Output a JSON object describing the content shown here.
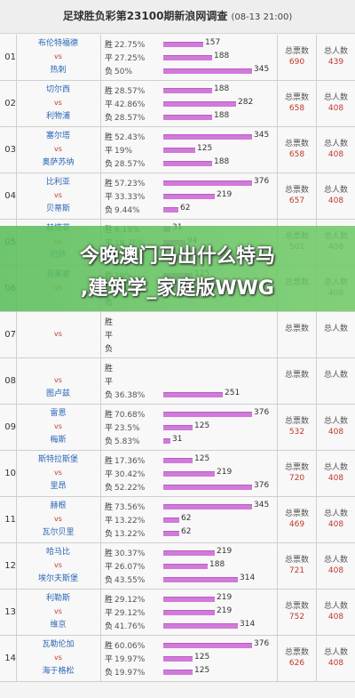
{
  "header": {
    "title": "足球胜负彩第23100期新浪网调查",
    "date": "(08-13 21:00)"
  },
  "labels": {
    "win": "胜",
    "draw": "平",
    "lose": "负",
    "vs": "vs",
    "total_votes": "总票数",
    "total_people": "总人数"
  },
  "overlay": {
    "line1": "今晚澳门马出什么特马",
    "line2": ",建筑学_家庭版WWG"
  },
  "matches": [
    {
      "num": "01",
      "home": "布伦特福德",
      "away": "热刺",
      "win": {
        "pct": "22.75%",
        "count": "157",
        "frac": 0.454
      },
      "draw": {
        "pct": "27.25%",
        "count": "188",
        "frac": 0.545
      },
      "lose": {
        "pct": "50%",
        "count": "345",
        "frac": 1.0
      },
      "votes": "690",
      "people": "439"
    },
    {
      "num": "02",
      "home": "切尔西",
      "away": "利物浦",
      "win": {
        "pct": "28.57%",
        "count": "188",
        "frac": 0.545
      },
      "draw": {
        "pct": "42.86%",
        "count": "282",
        "frac": 0.817
      },
      "lose": {
        "pct": "28.57%",
        "count": "188",
        "frac": 0.545
      },
      "votes": "658",
      "people": "408"
    },
    {
      "num": "03",
      "home": "塞尔塔",
      "away": "奥萨苏纳",
      "win": {
        "pct": "52.43%",
        "count": "345",
        "frac": 1.0
      },
      "draw": {
        "pct": "19%",
        "count": "125",
        "frac": 0.362
      },
      "lose": {
        "pct": "28.57%",
        "count": "188",
        "frac": 0.545
      },
      "votes": "658",
      "people": "408"
    },
    {
      "num": "04",
      "home": "比利亚",
      "away": "贝蒂斯",
      "win": {
        "pct": "57.23%",
        "count": "376",
        "frac": 1.0
      },
      "draw": {
        "pct": "33.33%",
        "count": "219",
        "frac": 0.582
      },
      "lose": {
        "pct": "9.44%",
        "count": "62",
        "frac": 0.165
      },
      "votes": "657",
      "people": "408"
    },
    {
      "num": "05",
      "home": "赫塔菲",
      "away": "巴萨",
      "win": {
        "pct": "6.19%",
        "count": "31",
        "frac": 0.082
      },
      "draw": {
        "pct": "18.76%",
        "count": "94",
        "frac": 0.25
      },
      "lose": {
        "pct": "75.05%",
        "count": "376",
        "frac": 1.0
      },
      "votes": "501",
      "people": "408"
    },
    {
      "num": "06",
      "home": "克莱蒙",
      "away": "",
      "win": {
        "pct": "19%",
        "count": "125",
        "frac": 0.332
      },
      "draw": {
        "pct": "23.86%",
        "count": "157",
        "frac": 0.418
      },
      "lose": {
        "pct": "",
        "count": "",
        "frac": 0
      },
      "votes": "",
      "people": "408"
    },
    {
      "num": "07",
      "home": "",
      "away": "",
      "win": {
        "pct": "",
        "count": "",
        "frac": 0
      },
      "draw": {
        "pct": "",
        "count": "",
        "frac": 0
      },
      "lose": {
        "pct": "",
        "count": "",
        "frac": 0
      },
      "votes": "",
      "people": ""
    },
    {
      "num": "08",
      "home": "",
      "away": "图卢兹",
      "win": {
        "pct": "",
        "count": "",
        "frac": 0
      },
      "draw": {
        "pct": "",
        "count": "",
        "frac": 0
      },
      "lose": {
        "pct": "36.38%",
        "count": "251",
        "frac": 0.667
      },
      "votes": "",
      "people": ""
    },
    {
      "num": "09",
      "home": "雷恩",
      "away": "梅斯",
      "win": {
        "pct": "70.68%",
        "count": "376",
        "frac": 1.0
      },
      "draw": {
        "pct": "23.5%",
        "count": "125",
        "frac": 0.332
      },
      "lose": {
        "pct": "5.83%",
        "count": "31",
        "frac": 0.082
      },
      "votes": "532",
      "people": "408"
    },
    {
      "num": "10",
      "home": "斯特拉斯堡",
      "away": "里昂",
      "win": {
        "pct": "17.36%",
        "count": "125",
        "frac": 0.332
      },
      "draw": {
        "pct": "30.42%",
        "count": "219",
        "frac": 0.582
      },
      "lose": {
        "pct": "52.22%",
        "count": "376",
        "frac": 1.0
      },
      "votes": "720",
      "people": "408"
    },
    {
      "num": "11",
      "home": "赫根",
      "away": "瓦尔贝里",
      "win": {
        "pct": "73.56%",
        "count": "345",
        "frac": 1.0
      },
      "draw": {
        "pct": "13.22%",
        "count": "62",
        "frac": 0.18
      },
      "lose": {
        "pct": "13.22%",
        "count": "62",
        "frac": 0.18
      },
      "votes": "469",
      "people": "408"
    },
    {
      "num": "12",
      "home": "哈马比",
      "away": "埃尔夫斯堡",
      "win": {
        "pct": "30.37%",
        "count": "219",
        "frac": 0.582
      },
      "draw": {
        "pct": "26.07%",
        "count": "188",
        "frac": 0.5
      },
      "lose": {
        "pct": "43.55%",
        "count": "314",
        "frac": 0.835
      },
      "votes": "721",
      "people": "408"
    },
    {
      "num": "13",
      "home": "利勒斯",
      "away": "维京",
      "win": {
        "pct": "29.12%",
        "count": "219",
        "frac": 0.582
      },
      "draw": {
        "pct": "29.12%",
        "count": "219",
        "frac": 0.582
      },
      "lose": {
        "pct": "41.76%",
        "count": "314",
        "frac": 0.835
      },
      "votes": "752",
      "people": "408"
    },
    {
      "num": "14",
      "home": "瓦勒伦加",
      "away": "海于格松",
      "win": {
        "pct": "60.06%",
        "count": "376",
        "frac": 1.0
      },
      "draw": {
        "pct": "19.97%",
        "count": "125",
        "frac": 0.332
      },
      "lose": {
        "pct": "19.97%",
        "count": "125",
        "frac": 0.332
      },
      "votes": "626",
      "people": "408"
    }
  ],
  "colors": {
    "bar": "#d07ad9",
    "team": "#2a66b6",
    "value": "#c0392b",
    "overlay": "#5abe5a"
  }
}
